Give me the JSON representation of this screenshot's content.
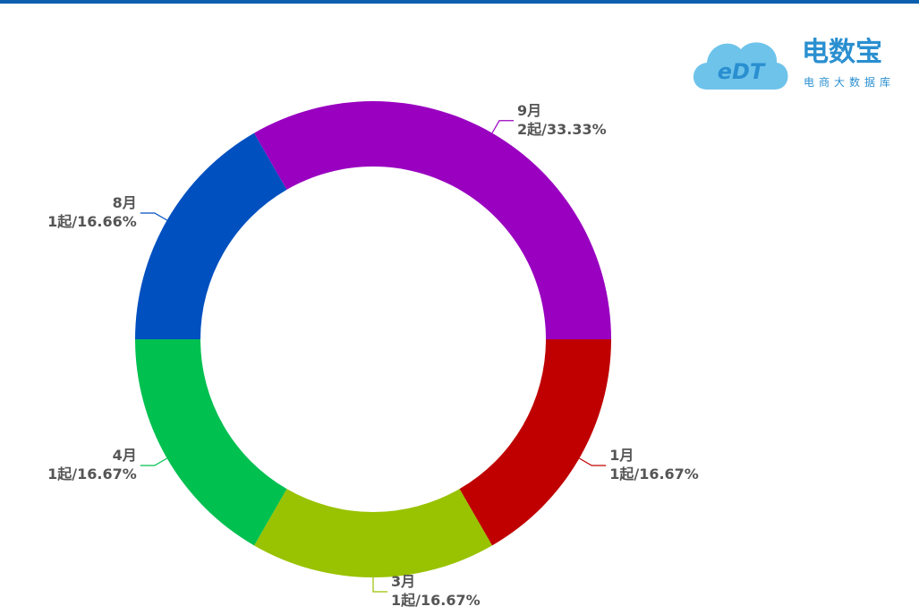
{
  "chart_data": {
    "type": "donut",
    "categories": [
      "1月",
      "3月",
      "4月",
      "8月",
      "9月"
    ],
    "values": [
      1,
      1,
      1,
      1,
      2
    ],
    "value_labels": [
      "1起/16.67%",
      "1起/16.67%",
      "1起/16.67%",
      "1起/16.66%",
      "2起/33.33%"
    ],
    "colors": [
      "#c00000",
      "#99c200",
      "#00c050",
      "#0050c0",
      "#9900c0"
    ]
  },
  "logo": {
    "mark": "eDT",
    "title": "电数宝",
    "subtitle": "电商大数据库"
  }
}
